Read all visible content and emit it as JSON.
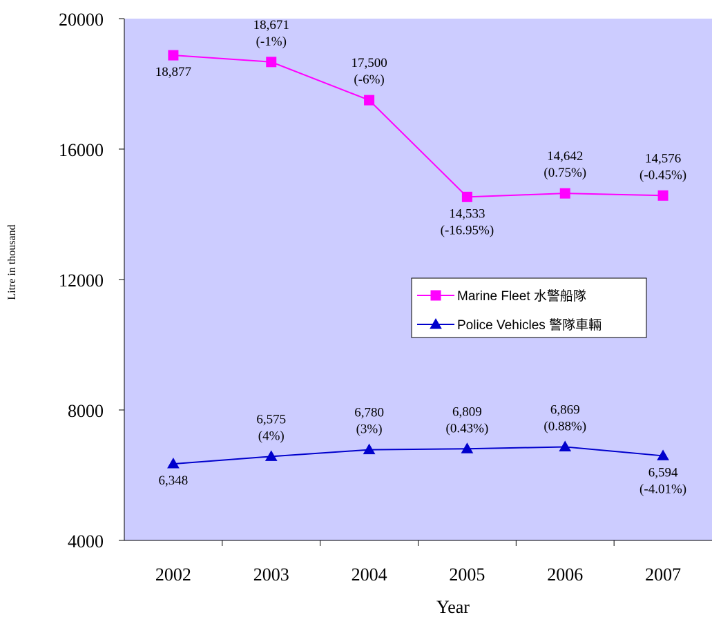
{
  "chart_data": {
    "type": "line",
    "title": "",
    "xlabel": "Year",
    "ylabel": "Litre in thousand",
    "ylim": [
      4000,
      20000
    ],
    "yticks": [
      "4000",
      "8000",
      "12000",
      "16000",
      "20000"
    ],
    "categories": [
      "2002",
      "2003",
      "2004",
      "2005",
      "2006",
      "2007"
    ],
    "grid": false,
    "plot_background": "#ccccff",
    "legend_position": "right-center",
    "series": [
      {
        "name": "Marine Fleet 水警船隊",
        "color": "#ff00ff",
        "marker": "square",
        "values": [
          18877,
          18671,
          17500,
          14533,
          14642,
          14576
        ],
        "labels": [
          [
            "18,877"
          ],
          [
            "18,671",
            "(-1%)"
          ],
          [
            "17,500",
            "(-6%)"
          ],
          [
            "14,533",
            "(-16.95%)"
          ],
          [
            "14,642",
            "(0.75%)"
          ],
          [
            "14,576",
            "(-0.45%)"
          ]
        ]
      },
      {
        "name": "Police Vehicles 警隊車輛",
        "color": "#0000cc",
        "marker": "triangle",
        "values": [
          6348,
          6575,
          6780,
          6809,
          6869,
          6594
        ],
        "labels": [
          [
            "6,348"
          ],
          [
            "6,575",
            "(4%)"
          ],
          [
            "6,780",
            "(3%)"
          ],
          [
            "6,809",
            "(0.43%)"
          ],
          [
            "6,869",
            "(0.88%)"
          ],
          [
            "6,594",
            "(-4.01%)"
          ]
        ]
      }
    ]
  }
}
